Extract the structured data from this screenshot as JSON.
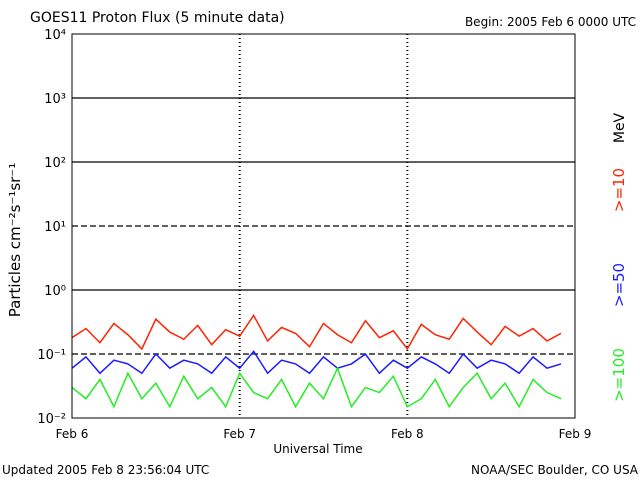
{
  "chart_data": {
    "type": "line",
    "title": "GOES11 Proton Flux (5 minute data)",
    "subtitle": "Begin: 2005 Feb 6 0000 UTC",
    "x_label": "Universal Time",
    "y_label": "Particles cm⁻²s⁻¹sr⁻¹",
    "footer_left": "Updated 2005 Feb  8 23:56:04 UTC",
    "footer_right": "NOAA/SEC Boulder, CO USA",
    "legend_unit": "MeV",
    "log_y": true,
    "grid": true,
    "grid_styles": [
      "none",
      "dashed",
      "solid",
      "dashed",
      "solid",
      "solid",
      "none"
    ],
    "xlim": [
      0,
      72
    ],
    "xticks": [
      {
        "value": 0,
        "label": "Feb 6"
      },
      {
        "value": 24,
        "label": "Feb 7"
      },
      {
        "value": 48,
        "label": "Feb 8"
      },
      {
        "value": 72,
        "label": "Feb 9"
      }
    ],
    "ylim": [
      0.01,
      10000
    ],
    "yticks": [
      {
        "value": 0.01,
        "label": "10⁻²"
      },
      {
        "value": 0.1,
        "label": "10⁻¹"
      },
      {
        "value": 1,
        "label": "10⁰"
      },
      {
        "value": 10,
        "label": "10¹"
      },
      {
        "value": 100,
        "label": "10²"
      },
      {
        "value": 1000,
        "label": "10³"
      },
      {
        "value": 10000,
        "label": "10⁴"
      }
    ],
    "x": [
      0,
      2,
      4,
      6,
      8,
      10,
      12,
      14,
      16,
      18,
      20,
      22,
      24,
      26,
      28,
      30,
      32,
      34,
      36,
      38,
      40,
      42,
      44,
      46,
      48,
      50,
      52,
      54,
      56,
      58,
      60,
      62,
      64,
      66,
      68,
      70
    ],
    "series": [
      {
        "name": ">=10",
        "color": "#ff2200",
        "values": [
          0.18,
          0.25,
          0.15,
          0.3,
          0.2,
          0.12,
          0.35,
          0.22,
          0.17,
          0.28,
          0.14,
          0.24,
          0.19,
          0.4,
          0.16,
          0.26,
          0.21,
          0.13,
          0.3,
          0.2,
          0.15,
          0.33,
          0.18,
          0.23,
          0.12,
          0.29,
          0.2,
          0.17,
          0.36,
          0.22,
          0.14,
          0.27,
          0.19,
          0.25,
          0.16,
          0.21
        ]
      },
      {
        "name": ">=50",
        "color": "#1a1aff",
        "values": [
          0.06,
          0.09,
          0.05,
          0.08,
          0.07,
          0.05,
          0.1,
          0.06,
          0.08,
          0.07,
          0.05,
          0.09,
          0.06,
          0.11,
          0.05,
          0.08,
          0.07,
          0.05,
          0.09,
          0.06,
          0.07,
          0.1,
          0.05,
          0.08,
          0.06,
          0.09,
          0.07,
          0.05,
          0.1,
          0.06,
          0.08,
          0.07,
          0.05,
          0.09,
          0.06,
          0.07
        ]
      },
      {
        "name": ">=100",
        "color": "#22ee22",
        "values": [
          0.03,
          0.02,
          0.04,
          0.015,
          0.05,
          0.02,
          0.035,
          0.015,
          0.045,
          0.02,
          0.03,
          0.015,
          0.05,
          0.025,
          0.02,
          0.04,
          0.015,
          0.035,
          0.02,
          0.06,
          0.015,
          0.03,
          0.025,
          0.045,
          0.015,
          0.02,
          0.04,
          0.015,
          0.03,
          0.05,
          0.02,
          0.035,
          0.015,
          0.04,
          0.025,
          0.02
        ]
      }
    ]
  }
}
